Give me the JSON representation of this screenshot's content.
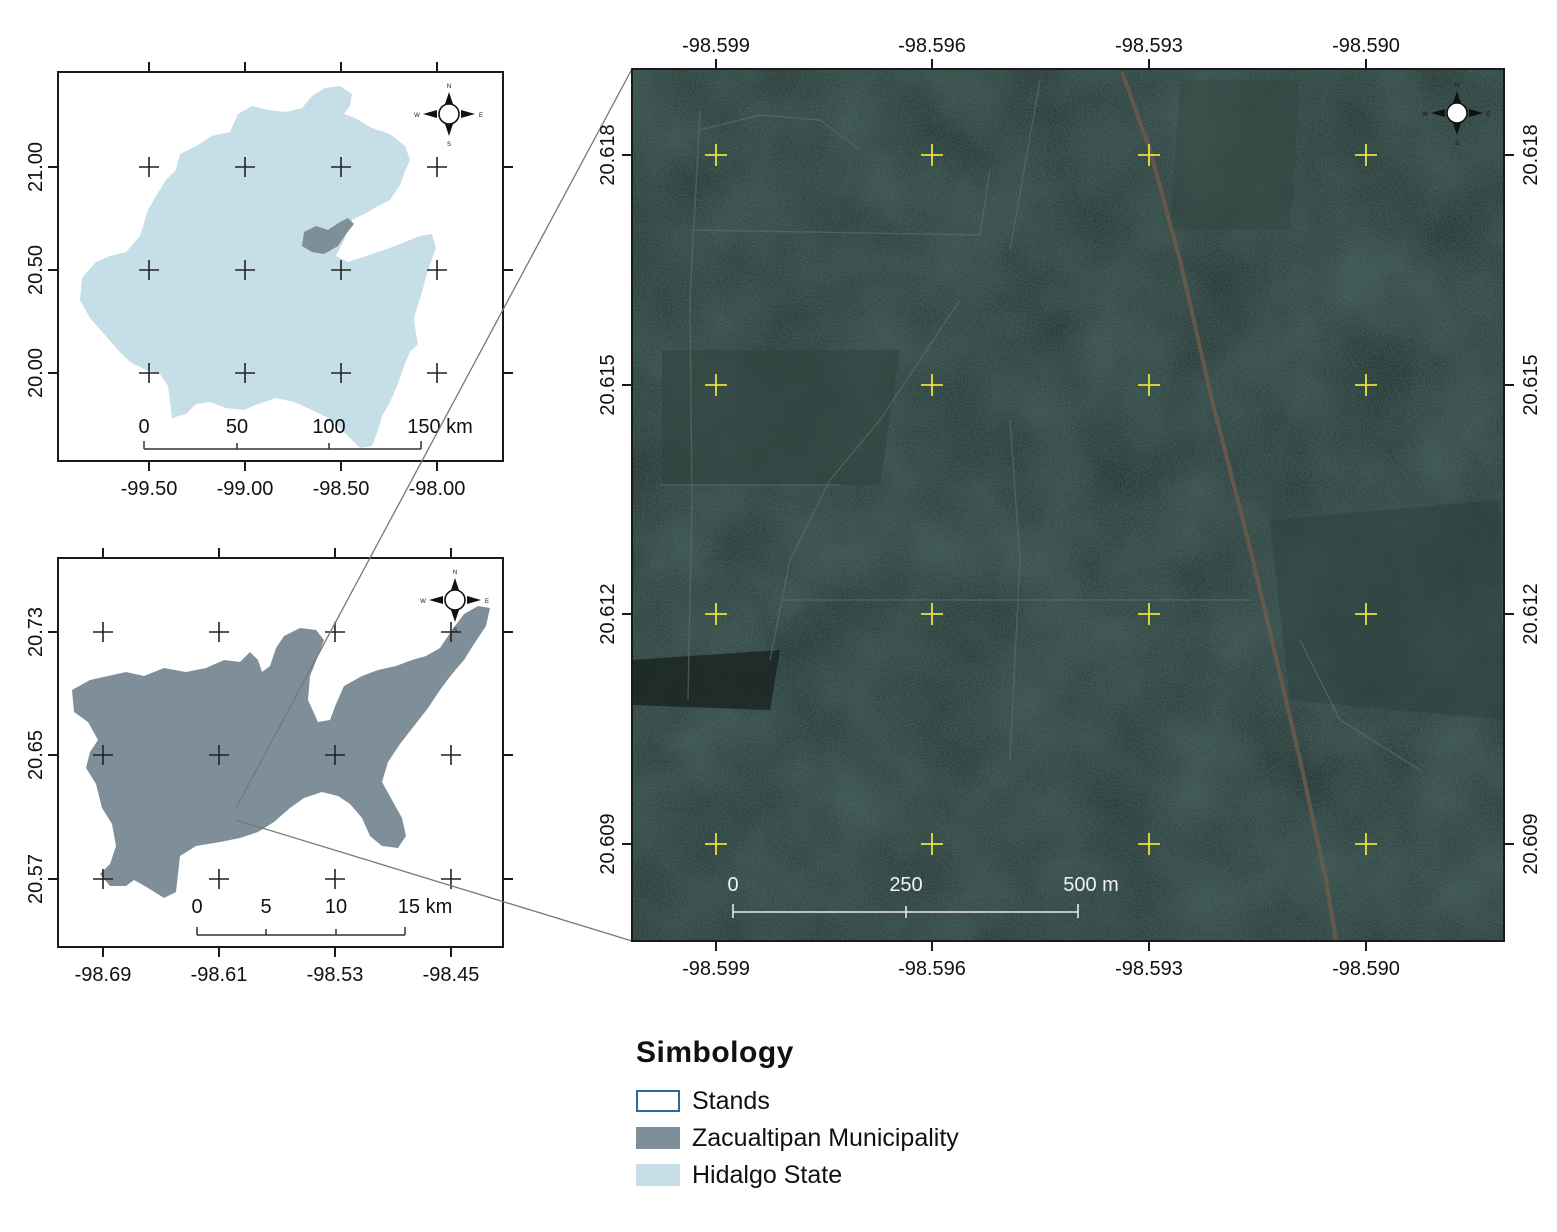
{
  "colors": {
    "hidalgo_fill": "#c5dee7",
    "municipality_fill": "#7f8f99",
    "imagery_bg": "#1d2a29",
    "imagery_grid_marker": "#e9e23a",
    "stands_outline": "#2b6a9a",
    "frame": "#1a1a1a"
  },
  "inset_state": {
    "name": "hidalgo-state-map",
    "x_ticks": [
      "-99.50",
      "-99.00",
      "-98.50",
      "-98.00"
    ],
    "y_ticks": [
      "21.00",
      "20.50",
      "20.00"
    ],
    "scale_labels": [
      "0",
      "50",
      "100",
      "150 km"
    ]
  },
  "inset_municipality": {
    "name": "zacualtipan-map",
    "x_ticks": [
      "-98.69",
      "-98.61",
      "-98.53",
      "-98.45"
    ],
    "y_ticks": [
      "20.73",
      "20.65",
      "20.57"
    ],
    "scale_labels": [
      "0",
      "5",
      "10",
      "15 km"
    ]
  },
  "main_map": {
    "name": "stand-imagery-map",
    "x_ticks": [
      "-98.599",
      "-98.596",
      "-98.593",
      "-98.590"
    ],
    "y_ticks": [
      "20.618",
      "20.615",
      "20.612",
      "20.609"
    ],
    "scale_labels": [
      "0",
      "250",
      "500 m"
    ]
  },
  "compass": {
    "icon": "compass-rose-icon",
    "n": "N",
    "s": "S",
    "e": "E",
    "w": "W"
  },
  "legend": {
    "title": "Simbology",
    "items": [
      {
        "label": "Stands",
        "swatch": "outline",
        "color": "#2b6a9a"
      },
      {
        "label": "Zacualtipan Municipality",
        "swatch": "fill",
        "color": "#7f8f99"
      },
      {
        "label": "Hidalgo State",
        "swatch": "fill",
        "color": "#c5dee7"
      }
    ]
  }
}
